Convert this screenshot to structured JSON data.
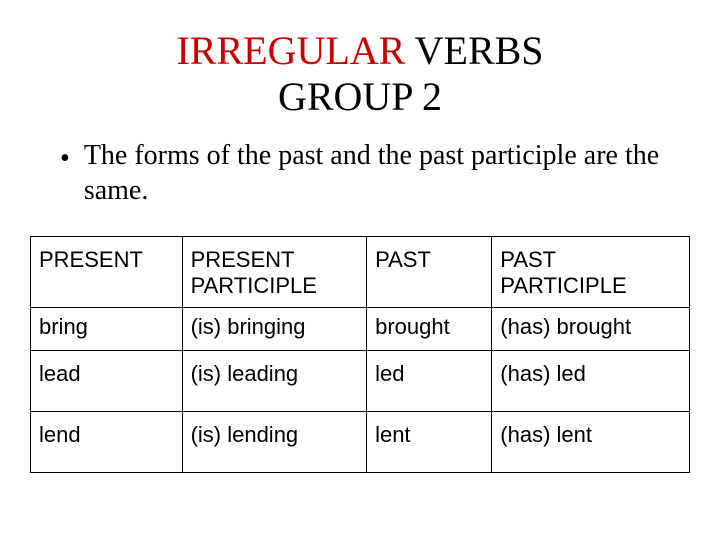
{
  "title": {
    "word_red": "IRREGULAR",
    "word_black1": " VERBS",
    "line2": "GROUP 2"
  },
  "bullet": "The forms of the past and the past participle are the same.",
  "table": {
    "headers": [
      "PRESENT",
      "PRESENT PARTICIPLE",
      "PAST",
      "PAST PARTICIPLE"
    ],
    "rows": [
      [
        "bring",
        "(is) bringing",
        "brought",
        "(has) brought"
      ],
      [
        "lead",
        "(is) leading",
        "led",
        "(has) led"
      ],
      [
        "lend",
        "(is) lending",
        "lent",
        "(has) lent"
      ]
    ],
    "col_widths_pct": [
      23,
      28,
      19,
      30
    ],
    "border_color": "#000000",
    "header_font": "Arial",
    "body_font": "Arial",
    "cell_fontsize": 22
  },
  "colors": {
    "title_red": "#cc0000",
    "text": "#000000",
    "background": "#ffffff"
  },
  "fonts": {
    "title": "Times New Roman",
    "body": "Times New Roman",
    "table": "Arial"
  }
}
